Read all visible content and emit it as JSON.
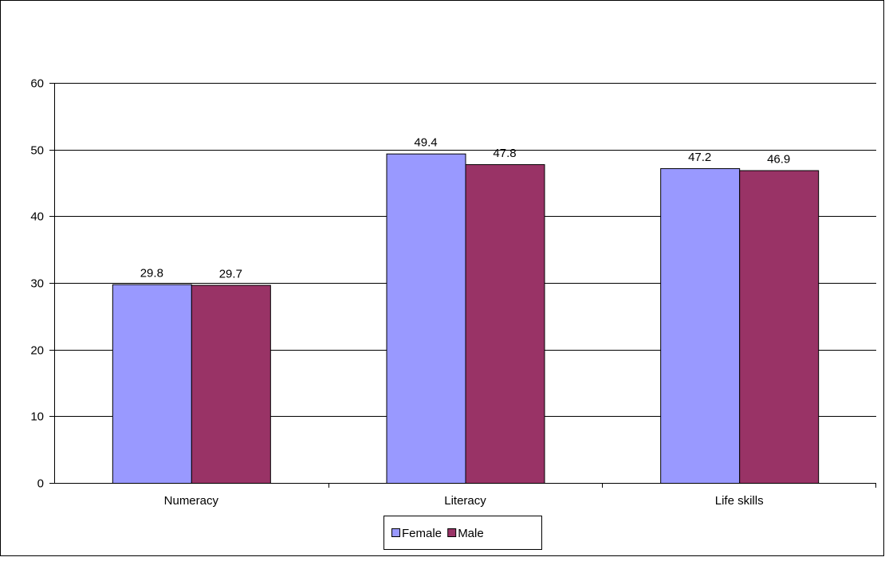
{
  "chart_data": {
    "type": "bar",
    "title": "",
    "xlabel": "",
    "ylabel": "",
    "categories": [
      "Numeracy",
      "Literacy",
      "Life skills"
    ],
    "series": [
      {
        "name": "Female",
        "values": [
          29.8,
          49.4,
          47.2
        ],
        "color": "#9999FF"
      },
      {
        "name": "Male",
        "values": [
          29.7,
          47.8,
          46.9
        ],
        "color": "#993366"
      }
    ],
    "ylim": [
      0,
      60
    ],
    "yticks": [
      0,
      10,
      20,
      30,
      40,
      50,
      60
    ],
    "grid": true,
    "legend_position": "bottom",
    "data_labels": true
  }
}
